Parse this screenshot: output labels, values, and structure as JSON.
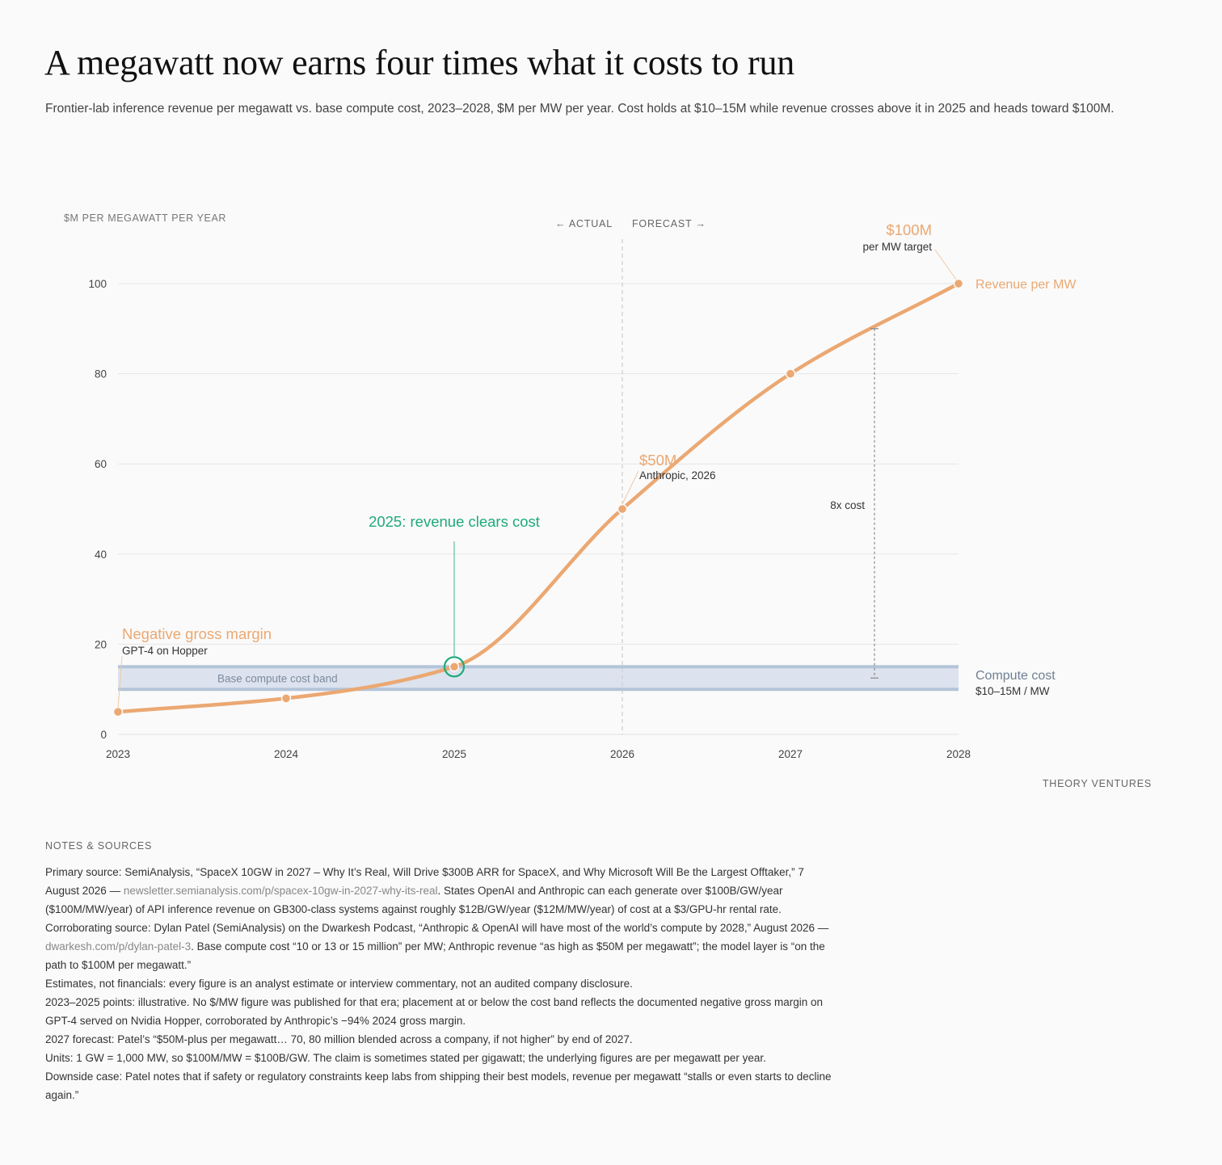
{
  "title": "A megawatt now earns four times what it costs to run",
  "subtitle": "Frontier-lab inference revenue per megawatt vs. base compute cost, 2023–2028, $M per MW per year. Cost holds at $10–15M while revenue crosses above it in 2025 and heads toward $100M.",
  "colors": {
    "revenue": "#eba872",
    "cost_band_fill": "#dce3ee",
    "cost_band_edge": "#b4c4d8",
    "highlight": "#1faa7a",
    "cost_label": "#6f7f93",
    "grid": "#e6e6e6"
  },
  "chart_data": {
    "type": "line",
    "ylabel": "$M PER MEGAWATT PER YEAR",
    "ylim": [
      0,
      100
    ],
    "yticks": [
      0,
      20,
      40,
      60,
      80,
      100
    ],
    "x": [
      2023,
      2024,
      2025,
      2026,
      2027,
      2028
    ],
    "xticks": [
      "2023",
      "2024",
      "2025",
      "2026",
      "2027",
      "2028"
    ],
    "series": [
      {
        "name": "Revenue per MW",
        "values": [
          5,
          8,
          15,
          50,
          80,
          100
        ]
      }
    ],
    "cost_band": {
      "low": 10,
      "high": 15,
      "label": "Base compute cost band"
    },
    "cost_label": {
      "name": "Compute cost",
      "range": "$10–15M / MW"
    },
    "divider": {
      "x": 2026,
      "left_label": "← ACTUAL",
      "right_label": "FORECAST →"
    },
    "annotations": {
      "neg_margin": {
        "title": "Negative gross margin",
        "sub": "GPT-4 on Hopper",
        "x": 2023,
        "y": 5
      },
      "crossover": {
        "title": "2025: revenue clears cost",
        "x": 2025,
        "y": 15
      },
      "fifty": {
        "title": "$50M",
        "sub": "Anthropic, 2026",
        "x": 2026,
        "y": 50
      },
      "hundred": {
        "title": "$100M",
        "sub": "per MW target",
        "x": 2028,
        "y": 100
      },
      "multiple": {
        "label": "8x cost",
        "x": 2027.5,
        "y_low": 12.5,
        "y_high": 90
      }
    },
    "grid": true,
    "legend": "inline labels at right end"
  },
  "credit": "THEORY VENTURES",
  "notes": {
    "title": "NOTES & SOURCES",
    "items": [
      {
        "text": "Primary source: SemiAnalysis, “SpaceX 10GW in 2027 – Why It’s Real, Will Drive $300B ARR for SpaceX, and Why Microsoft Will Be the Largest Offtaker,” 7 August 2026 — ",
        "link": "newsletter.semianalysis.com/p/spacex-10gw-in-2027-why-its-real",
        "after": ". States OpenAI and Anthropic can each generate over $100B/GW/year ($100M/MW/year) of API inference revenue on GB300-class systems against roughly $12B/GW/year ($12M/MW/year) of cost at a $3/GPU-hr rental rate."
      },
      {
        "text": "Corroborating source: Dylan Patel (SemiAnalysis) on the Dwarkesh Podcast, “Anthropic & OpenAI will have most of the world’s compute by 2028,” August 2026 — ",
        "link": "dwarkesh.com/p/dylan-patel-3",
        "after": ". Base compute cost “10 or 13 or 15 million” per MW; Anthropic revenue “as high as $50M per megawatt”; the model layer is “on the path to $100M per megawatt.”"
      },
      {
        "text": "Estimates, not financials: every figure is an analyst estimate or interview commentary, not an audited company disclosure.",
        "link": "",
        "after": ""
      },
      {
        "text": "2023–2025 points: illustrative. No $/MW figure was published for that era; placement at or below the cost band reflects the documented negative gross margin on GPT-4 served on Nvidia Hopper, corroborated by Anthropic’s −94% 2024 gross margin.",
        "link": "",
        "after": ""
      },
      {
        "text": "2027 forecast: Patel’s “$50M-plus per megawatt… 70, 80 million blended across a company, if not higher” by end of 2027.",
        "link": "",
        "after": ""
      },
      {
        "text": "Units: 1 GW = 1,000 MW, so $100M/MW = $100B/GW. The claim is sometimes stated per gigawatt; the underlying figures are per megawatt per year.",
        "link": "",
        "after": ""
      },
      {
        "text": "Downside case: Patel notes that if safety or regulatory constraints keep labs from shipping their best models, revenue per megawatt “stalls or even starts to decline again.”",
        "link": "",
        "after": ""
      }
    ]
  }
}
